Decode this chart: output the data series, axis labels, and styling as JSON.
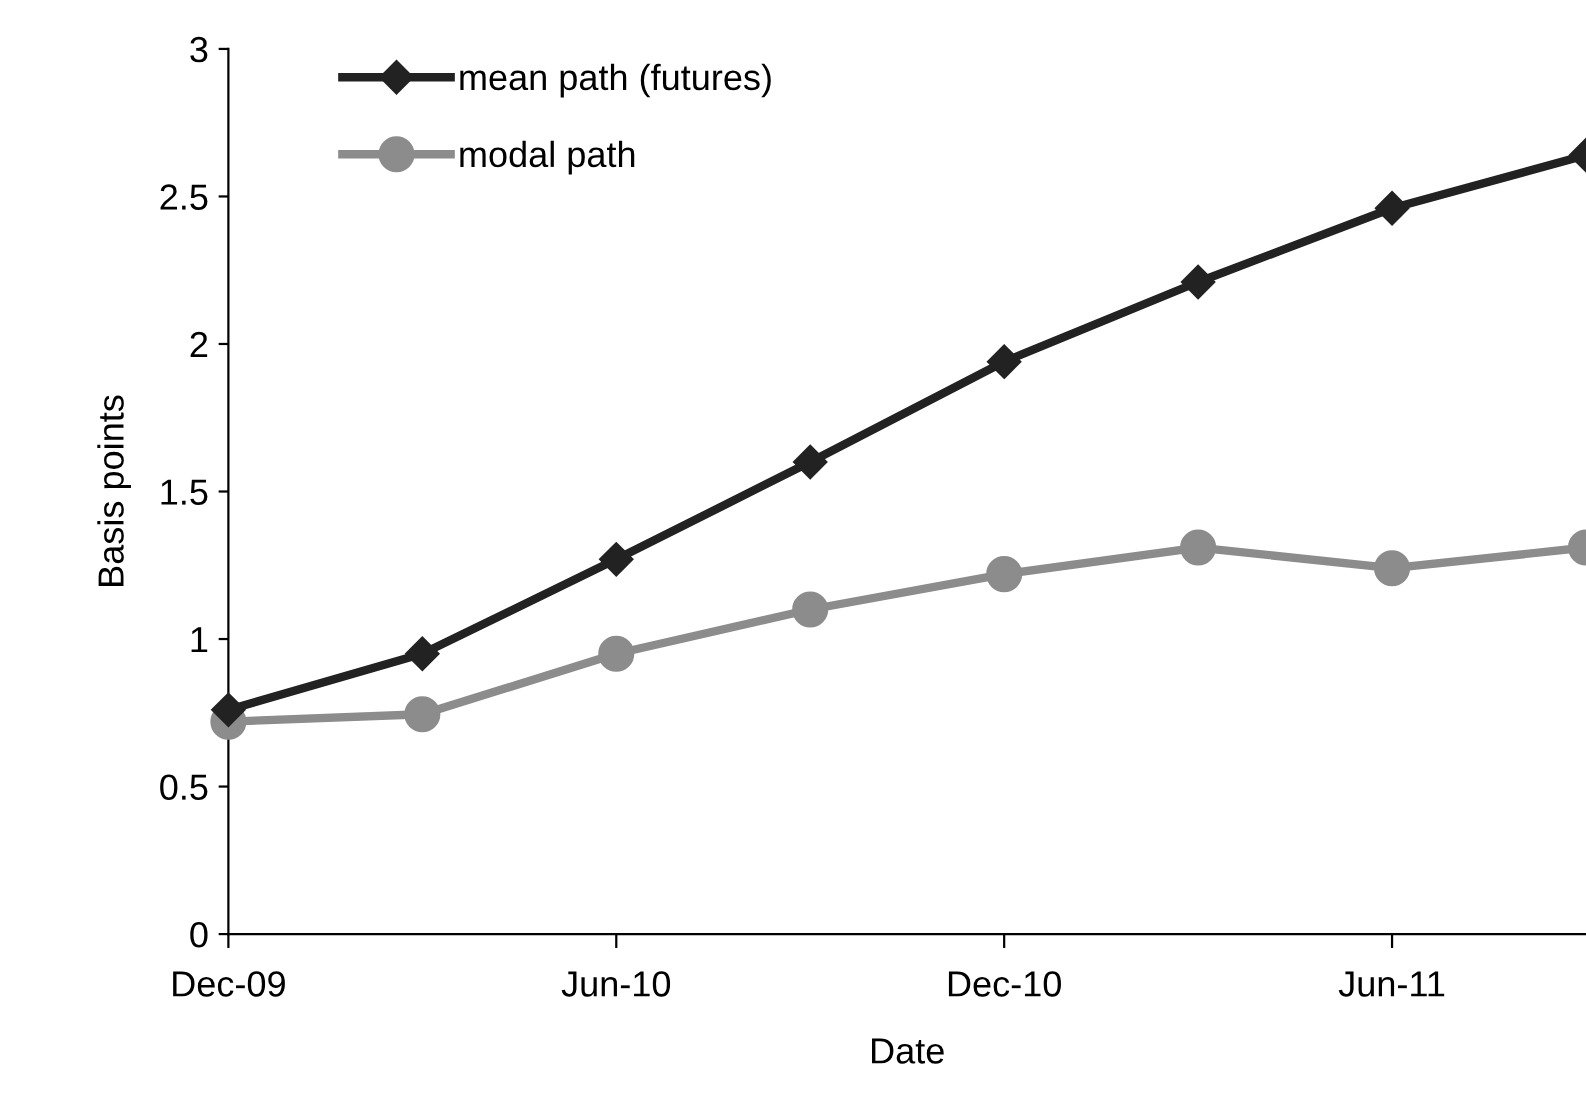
{
  "chart_data": {
    "type": "line",
    "xlabel": "Date",
    "ylabel": "Basis points",
    "categories": [
      "Dec-09",
      null,
      "Jun-10",
      null,
      "Dec-10",
      null,
      "Jun-11",
      null
    ],
    "series": [
      {
        "name": "mean path (futures)",
        "color": "#222222",
        "marker": "diamond",
        "values": [
          0.76,
          0.95,
          1.27,
          1.6,
          1.94,
          2.21,
          2.46,
          2.64
        ]
      },
      {
        "name": "modal path",
        "color": "#8c8c8c",
        "marker": "circle",
        "values": [
          0.72,
          0.745,
          0.95,
          1.1,
          1.22,
          1.31,
          1.24,
          1.31
        ]
      }
    ],
    "ylim": [
      0,
      3
    ],
    "yticks": [
      0,
      0.5,
      1,
      1.5,
      2,
      2.5,
      3
    ],
    "grid": false,
    "legend": "top left",
    "line_style": "solid"
  }
}
